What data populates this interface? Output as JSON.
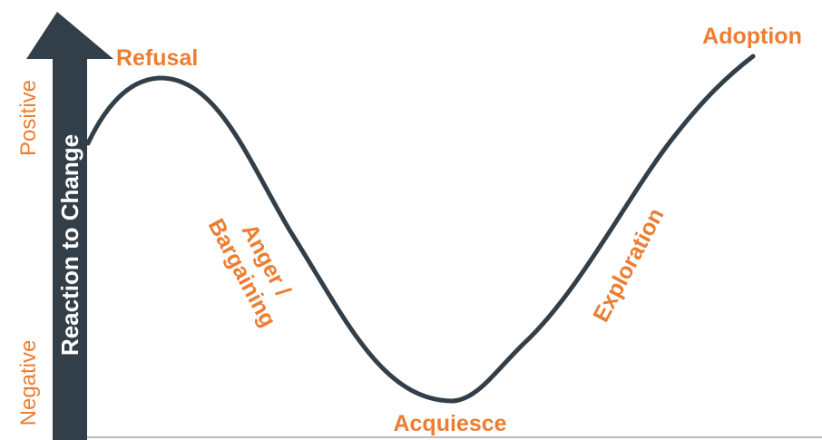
{
  "axis": {
    "title": "Reaction to Change",
    "positive_label": "Positive",
    "negative_label": "Negative"
  },
  "stages": {
    "refusal": "Refusal",
    "anger_line1": "Anger /",
    "anger_line2": "Bargaining",
    "acquiesce": "Acquiesce",
    "exploration": "Exploration",
    "adoption": "Adoption"
  },
  "colors": {
    "accent": "#ED7D31",
    "arrow": "#333F48",
    "curve": "#333F48",
    "axis_text": "#FFFFFF",
    "baseline": "#A6A6A6"
  }
}
